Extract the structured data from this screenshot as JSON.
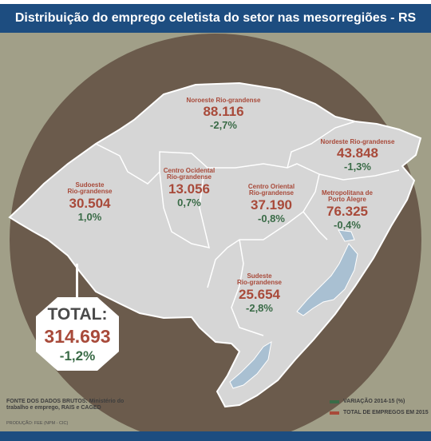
{
  "title": "Distribuição do emprego celetista do setor nas mesorregiões - RS",
  "colors": {
    "title_band": "#1d4d80",
    "background": "#a19f88",
    "circle": "#6b5b4c",
    "region_fill": "#d6d6d6",
    "water": "#a9c0d2",
    "total_color": "#a84a3a",
    "variation_color": "#3a6b47"
  },
  "regions": [
    {
      "name_line1": "Noroeste Rio-grandense",
      "name_line2": "",
      "total": "88.116",
      "variation": "-2,7%"
    },
    {
      "name_line1": "Nordeste Rio-grandense",
      "name_line2": "",
      "total": "43.848",
      "variation": "-1,3%"
    },
    {
      "name_line1": "Sudoeste",
      "name_line2": "Rio-grandense",
      "total": "30.504",
      "variation": "1,0%"
    },
    {
      "name_line1": "Centro Ocidental",
      "name_line2": "Rio-grandense",
      "total": "13.056",
      "variation": "0,7%"
    },
    {
      "name_line1": "Centro Oriental",
      "name_line2": "Rio-grandense",
      "total": "37.190",
      "variation": "-0,8%"
    },
    {
      "name_line1": "Metropolitana de",
      "name_line2": "Porto Alegre",
      "total": "76.325",
      "variation": "-0,4%"
    },
    {
      "name_line1": "Sudeste",
      "name_line2": "Rio-grandense",
      "total": "25.654",
      "variation": "-2,8%"
    }
  ],
  "summary": {
    "label": "TOTAL:",
    "total": "314.693",
    "variation": "-1,2%"
  },
  "source": "FONTE DOS DADOS BRUTOS: Ministério do trabalho e emprego, RAIS e CAGED",
  "credit": "PRODUÇÃO: FEE (NPM - CIC)",
  "legend": [
    {
      "label": "VARIAÇÃO 2014-15 (%)",
      "color": "#3a6b47"
    },
    {
      "label": "TOTAL DE EMPREGOS EM 2015",
      "color": "#a84a3a"
    }
  ]
}
